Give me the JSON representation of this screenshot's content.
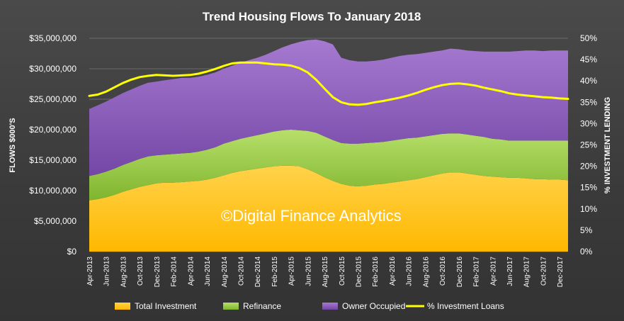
{
  "chart_data": {
    "type": "area",
    "stacked": true,
    "title": "Trend Housing Flows To January 2018",
    "watermark": "©Digital Finance Analytics",
    "ylabel": "FLOWS $000'S",
    "y2label": "% INVESTMENT LENDING",
    "ylim": [
      0,
      35000000
    ],
    "y2lim": [
      0,
      50
    ],
    "y_ticks": [
      0,
      5000000,
      10000000,
      15000000,
      20000000,
      25000000,
      30000000,
      35000000
    ],
    "y_tick_labels": [
      "$0",
      "$5,000,000",
      "$10,000,000",
      "$15,000,000",
      "$20,000,000",
      "$25,000,000",
      "$30,000,000",
      "$35,000,000"
    ],
    "y2_ticks": [
      0,
      5,
      10,
      15,
      20,
      25,
      30,
      35,
      40,
      45,
      50
    ],
    "y2_tick_labels": [
      "0%",
      "5%",
      "10%",
      "15%",
      "20%",
      "25%",
      "30%",
      "35%",
      "40%",
      "45%",
      "50%"
    ],
    "grid": true,
    "legend_position": "bottom",
    "x": [
      "Apr-2013",
      "May-2013",
      "Jun-2013",
      "Jul-2013",
      "Aug-2013",
      "Sep-2013",
      "Oct-2013",
      "Nov-2013",
      "Dec-2013",
      "Jan-2014",
      "Feb-2014",
      "Mar-2014",
      "Apr-2014",
      "May-2014",
      "Jun-2014",
      "Jul-2014",
      "Aug-2014",
      "Sep-2014",
      "Oct-2014",
      "Nov-2014",
      "Dec-2014",
      "Jan-2015",
      "Feb-2015",
      "Mar-2015",
      "Apr-2015",
      "May-2015",
      "Jun-2015",
      "Jul-2015",
      "Aug-2015",
      "Sep-2015",
      "Oct-2015",
      "Nov-2015",
      "Dec-2015",
      "Jan-2016",
      "Feb-2016",
      "Mar-2016",
      "Apr-2016",
      "May-2016",
      "Jun-2016",
      "Jul-2016",
      "Aug-2016",
      "Sep-2016",
      "Oct-2016",
      "Nov-2016",
      "Dec-2016",
      "Jan-2017",
      "Feb-2017",
      "Mar-2017",
      "Apr-2017",
      "May-2017",
      "Jun-2017",
      "Jul-2017",
      "Aug-2017",
      "Sep-2017",
      "Oct-2017",
      "Nov-2017",
      "Dec-2017",
      "Jan-2018"
    ],
    "x_tick_labels": [
      "Apr-2013",
      "Jun-2013",
      "Aug-2013",
      "Oct-2013",
      "Dec-2013",
      "Feb-2014",
      "Apr-2014",
      "Jun-2014",
      "Aug-2014",
      "Oct-2014",
      "Dec-2014",
      "Feb-2015",
      "Apr-2015",
      "Jun-2015",
      "Aug-2015",
      "Oct-2015",
      "Dec-2015",
      "Feb-2016",
      "Apr-2016",
      "Jun-2016",
      "Aug-2016",
      "Oct-2016",
      "Dec-2016",
      "Feb-2017",
      "Apr-2017",
      "Jun-2017",
      "Aug-2017",
      "Oct-2017",
      "Dec-2017"
    ],
    "series": [
      {
        "name": "Total Investment",
        "kind": "area",
        "axis": "left",
        "color": "#ffc000",
        "values": [
          8400000,
          8600000,
          8900000,
          9300000,
          9800000,
          10200000,
          10600000,
          10900000,
          11200000,
          11300000,
          11300000,
          11400000,
          11500000,
          11600000,
          11800000,
          12100000,
          12500000,
          12900000,
          13200000,
          13400000,
          13600000,
          13800000,
          14000000,
          14100000,
          14100000,
          14000000,
          13500000,
          12900000,
          12200000,
          11600000,
          11100000,
          10800000,
          10700000,
          10800000,
          11000000,
          11100000,
          11300000,
          11500000,
          11700000,
          11900000,
          12200000,
          12500000,
          12800000,
          13000000,
          13000000,
          12800000,
          12600000,
          12400000,
          12300000,
          12200000,
          12100000,
          12100000,
          12000000,
          11900000,
          11900000,
          11800000,
          11800000,
          11700000
        ]
      },
      {
        "name": "Refinance",
        "kind": "area",
        "axis": "left",
        "color": "#92c83e",
        "values": [
          4000000,
          4100000,
          4200000,
          4300000,
          4400000,
          4500000,
          4600000,
          4700000,
          4600000,
          4600000,
          4700000,
          4700000,
          4700000,
          4800000,
          4900000,
          5000000,
          5200000,
          5200000,
          5300000,
          5400000,
          5500000,
          5600000,
          5700000,
          5800000,
          5900000,
          5900000,
          6300000,
          6600000,
          6700000,
          6700000,
          6700000,
          6900000,
          7000000,
          7000000,
          6900000,
          6900000,
          6900000,
          6900000,
          6900000,
          6800000,
          6700000,
          6600000,
          6500000,
          6400000,
          6400000,
          6400000,
          6400000,
          6400000,
          6200000,
          6200000,
          6100000,
          6100000,
          6200000,
          6300000,
          6300000,
          6400000,
          6400000,
          6500000
        ]
      },
      {
        "name": "Owner Occupied",
        "kind": "area",
        "axis": "left",
        "color": "#8858b8",
        "values": [
          11000000,
          11300000,
          11500000,
          11700000,
          11800000,
          11900000,
          12000000,
          12100000,
          12100000,
          12200000,
          12300000,
          12400000,
          12300000,
          12300000,
          12300000,
          12300000,
          12300000,
          12400000,
          12500000,
          12600000,
          12700000,
          12900000,
          13200000,
          13600000,
          14000000,
          14500000,
          14900000,
          15300000,
          15600000,
          15700000,
          14000000,
          13700000,
          13500000,
          13400000,
          13400000,
          13500000,
          13600000,
          13700000,
          13700000,
          13700000,
          13700000,
          13700000,
          13700000,
          13900000,
          13800000,
          13800000,
          13900000,
          14000000,
          14300000,
          14400000,
          14600000,
          14700000,
          14800000,
          14800000,
          14700000,
          14800000,
          14800000,
          14800000
        ]
      },
      {
        "name": "% Investment Loans",
        "kind": "line",
        "axis": "right",
        "color": "#ffff00",
        "values": [
          36.5,
          36.8,
          37.5,
          38.5,
          39.5,
          40.3,
          40.9,
          41.2,
          41.4,
          41.3,
          41.2,
          41.3,
          41.4,
          41.7,
          42.2,
          42.8,
          43.5,
          44.1,
          44.3,
          44.3,
          44.3,
          44.1,
          43.9,
          43.8,
          43.6,
          43.0,
          42.0,
          40.3,
          38.2,
          36.2,
          35.0,
          34.5,
          34.4,
          34.6,
          35.0,
          35.3,
          35.7,
          36.1,
          36.6,
          37.2,
          37.9,
          38.5,
          39.0,
          39.3,
          39.4,
          39.2,
          38.9,
          38.4,
          38.0,
          37.6,
          37.1,
          36.8,
          36.6,
          36.4,
          36.2,
          36.1,
          35.9,
          35.8
        ]
      }
    ]
  }
}
